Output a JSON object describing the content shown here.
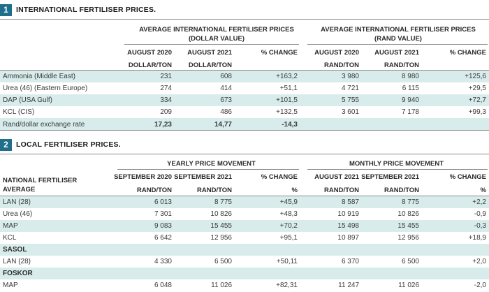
{
  "section1": {
    "number": "1",
    "title": "INTERNATIONAL FERTILISER PRICES.",
    "group_dollar": [
      "AVERAGE INTERNATIONAL FERTILISER PRICES",
      "(DOLLAR VALUE)"
    ],
    "group_rand": [
      "AVERAGE INTERNATIONAL FERTILISER PRICES",
      "(RAND VALUE)"
    ],
    "col_headers": [
      "AUGUST 2020",
      "AUGUST 2021",
      "% CHANGE",
      "AUGUST 2020",
      "AUGUST 2021",
      "% CHANGE"
    ],
    "unit_headers": [
      "DOLLAR/TON",
      "DOLLAR/TON",
      "",
      "RAND/TON",
      "RAND/TON",
      ""
    ],
    "rows": [
      {
        "label": "Ammonia (Middle East)",
        "v": [
          "231",
          "608",
          "+163,2",
          "3 980",
          "8 980",
          "+125,6"
        ]
      },
      {
        "label": "Urea (46) (Eastern Europe)",
        "v": [
          "274",
          "414",
          "+51,1",
          "4 721",
          "6 115",
          "+29,5"
        ]
      },
      {
        "label": "DAP (USA Gulf)",
        "v": [
          "334",
          "673",
          "+101,5",
          "5 755",
          "9 940",
          "+72,7"
        ]
      },
      {
        "label": "KCL (CIS)",
        "v": [
          "209",
          "486",
          "+132,5",
          "3 601",
          "7 178",
          "+99,3"
        ]
      },
      {
        "label": "Rand/dollar exchange rate",
        "v": [
          "17,23",
          "14,77",
          "-14,3",
          "",
          "",
          ""
        ]
      }
    ]
  },
  "section2": {
    "number": "2",
    "title": "LOCAL FERTILISER PRICES.",
    "group_yearly": "YEARLY PRICE MOVEMENT",
    "group_monthly": "MONTHLY PRICE MOVEMENT",
    "row_header": [
      "NATIONAL FERTILISER",
      "AVERAGE"
    ],
    "col_headers": [
      "SEPTEMBER 2020",
      "SEPTEMBER 2021",
      "% CHANGE",
      "AUGUST 2021",
      "SEPTEMBER 2021",
      "% CHANGE"
    ],
    "unit_headers": [
      "RAND/TON",
      "RAND/TON",
      "%",
      "RAND/TON",
      "RAND/TON",
      "%"
    ],
    "rows": [
      {
        "label": "LAN (28)",
        "v": [
          "6 013",
          "8 775",
          "+45,9",
          "8 587",
          "8 775",
          "+2,2"
        ]
      },
      {
        "label": "Urea (46)",
        "v": [
          "7 301",
          "10 826",
          "+48,3",
          "10 919",
          "10 826",
          "-0,9"
        ]
      },
      {
        "label": "MAP",
        "v": [
          "9 083",
          "15 455",
          "+70,2",
          "15 498",
          "15 455",
          "-0,3"
        ]
      },
      {
        "label": "KCL",
        "v": [
          "6 642",
          "12 956",
          "+95,1",
          "10 897",
          "12 956",
          "+18,9"
        ]
      }
    ],
    "sasol_label": "SASOL",
    "sasol_rows": [
      {
        "label": "LAN (28)",
        "v": [
          "4 330",
          "6 500",
          "+50,11",
          "6 370",
          "6 500",
          "+2,0"
        ]
      }
    ],
    "foskor_label": "FOSKOR",
    "foskor_rows": [
      {
        "label": "MAP",
        "v": [
          "6 048",
          "11 026",
          "+82,31",
          "11 247",
          "11 026",
          "-2,0"
        ]
      }
    ]
  }
}
